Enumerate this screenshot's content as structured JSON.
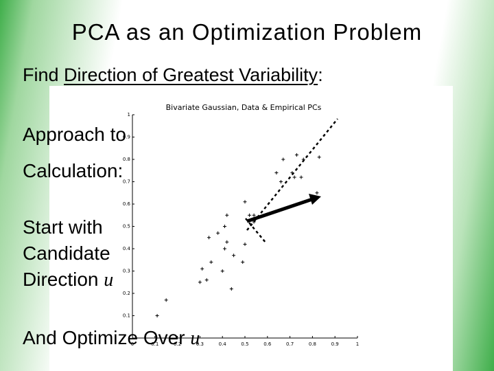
{
  "title": "PCA as an Optimization Problem",
  "heading": {
    "prefix": "Find ",
    "underlined": "Direction of Greatest Variability",
    "suffix": ":"
  },
  "lines": [
    {
      "text": "Approach to"
    },
    {
      "text": "Calculation:"
    },
    {
      "text": "Start with"
    },
    {
      "text": "Candidate"
    },
    {
      "text": "Direction ",
      "var": "u"
    },
    {
      "text": "And Optimize Over ",
      "var": "u"
    }
  ],
  "figure": {
    "type": "scatter",
    "title": "Bivariate Gaussian, Data & Empirical PCs",
    "x": [
      0.11,
      0.15,
      0.3,
      0.31,
      0.35,
      0.34,
      0.38,
      0.41,
      0.42,
      0.41,
      0.42,
      0.4,
      0.44,
      0.45,
      0.49,
      0.5,
      0.5,
      0.52,
      0.54,
      0.54,
      0.64,
      0.67,
      0.71,
      0.72,
      0.73,
      0.75,
      0.76,
      0.83,
      0.82,
      0.66,
      0.33
    ],
    "y": [
      0.1,
      0.17,
      0.25,
      0.31,
      0.34,
      0.45,
      0.47,
      0.5,
      0.55,
      0.4,
      0.43,
      0.3,
      0.22,
      0.37,
      0.34,
      0.42,
      0.61,
      0.55,
      0.55,
      0.52,
      0.74,
      0.8,
      0.74,
      0.72,
      0.82,
      0.72,
      0.8,
      0.81,
      0.65,
      0.7,
      0.26
    ],
    "xlim": [
      0,
      1
    ],
    "ylim": [
      0,
      1
    ],
    "xticks": [
      0,
      0.1,
      0.2,
      0.3,
      0.4,
      0.5,
      0.6,
      0.7,
      0.8,
      0.9,
      1
    ],
    "yticks": [
      0.1,
      0.2,
      0.3,
      0.4,
      0.5,
      0.6,
      0.7,
      0.8,
      0.9,
      1
    ]
  }
}
